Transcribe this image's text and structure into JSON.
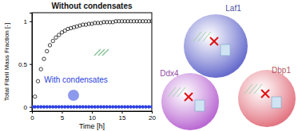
{
  "chart_data": {
    "type": "scatter",
    "x_label": "Time [h]",
    "y_label": "Total Fibril Mass Fraction [-]",
    "x": [
      0,
      0.5,
      1,
      1.5,
      2,
      2.5,
      3,
      3.5,
      4,
      4.5,
      5,
      5.5,
      6,
      6.5,
      7,
      7.5,
      8,
      8.5,
      9,
      9.5,
      10,
      10.5,
      11,
      11.5,
      12,
      12.5,
      13,
      13.5,
      14,
      14.5,
      15,
      15.5,
      16,
      16.5,
      17,
      17.5,
      18,
      18.5,
      19,
      19.5,
      20
    ],
    "series": [
      {
        "name": "Without condensates",
        "color": "#111111",
        "marker": "circle",
        "values": [
          0,
          0.12,
          0.3,
          0.44,
          0.56,
          0.65,
          0.72,
          0.77,
          0.81,
          0.84,
          0.87,
          0.89,
          0.91,
          0.92,
          0.93,
          0.94,
          0.95,
          0.96,
          0.96,
          0.97,
          0.97,
          0.98,
          0.98,
          0.98,
          0.99,
          0.99,
          0.99,
          0.99,
          1,
          1,
          1,
          1,
          1,
          1,
          1,
          1,
          1,
          1,
          1,
          1,
          1
        ]
      },
      {
        "name": "With condensates",
        "color": "#2b3fe0",
        "marker": "circle",
        "values": [
          0,
          0,
          0,
          0,
          0,
          0,
          0,
          0,
          0,
          0,
          0,
          0,
          0,
          0,
          0,
          0,
          0,
          0,
          0,
          0,
          0,
          0,
          0,
          0,
          0,
          0,
          0,
          0,
          0,
          0,
          0,
          0,
          0,
          0,
          0,
          0,
          0,
          0,
          0,
          0,
          0
        ]
      }
    ],
    "xlim": [
      0,
      20
    ],
    "xticks": [
      0,
      5,
      10,
      15,
      20
    ],
    "ylim": [
      -0.05,
      1.1
    ],
    "yticks": [
      0,
      0.5,
      1
    ],
    "grid": false
  },
  "diagram": {
    "nodes": [
      {
        "label": "Laf1",
        "color": "#5a5fc8"
      },
      {
        "label": "Ddx4",
        "color": "#b45ccf"
      },
      {
        "label": "Dbp1",
        "color": "#e06a78"
      }
    ]
  }
}
